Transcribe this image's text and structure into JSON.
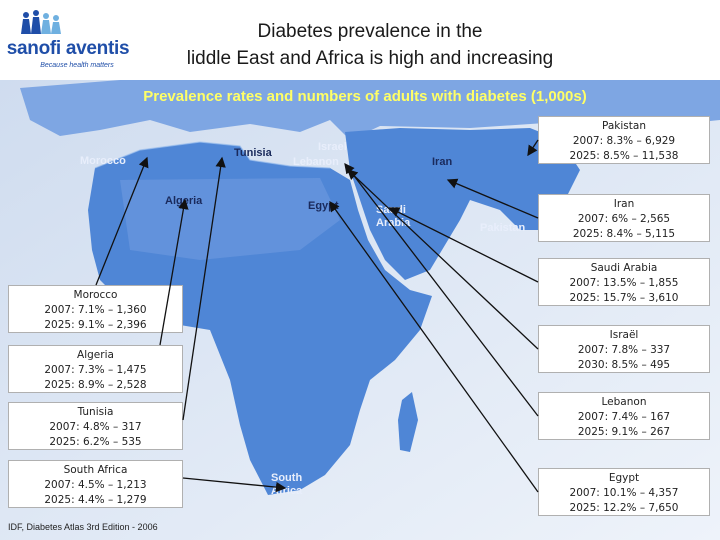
{
  "header": {
    "logo_text": "sanofi aventis",
    "logo_tagline": "Because health matters",
    "title_line1": "Diabetes prevalence in the",
    "title_line2": "liddle East and Africa is high and increasing",
    "subtitle": "Prevalence rates and numbers of adults with diabetes (1,000s)"
  },
  "map_labels": {
    "morocco": "Morocco",
    "tunisia": "Tunisia",
    "israel": "Israel",
    "lebanon": "Lebanon",
    "iran": "Iran",
    "algeria": "Algeria",
    "egypt": "Egypt",
    "saudi_line1": "Saudi",
    "saudi_line2": "Arabia",
    "pakistan": "Pakistan",
    "south_line1": "South",
    "south_line2": "Africa"
  },
  "callouts": {
    "pakistan": {
      "name": "Pakistan",
      "line2007": "2007: 8.3% – 6,929",
      "line2025": "2025: 8.5% – 11,538"
    },
    "iran": {
      "name": "Iran",
      "line2007": "2007: 6% – 2,565",
      "line2025": "2025: 8.4% – 5,115"
    },
    "saudi": {
      "name": "Saudi Arabia",
      "line2007": "2007: 13.5% – 1,855",
      "line2025": "2025: 15.7% – 3,610"
    },
    "israel": {
      "name": "Israël",
      "line2007": "2007: 7.8% – 337",
      "line2025": "2030: 8.5% – 495"
    },
    "lebanon": {
      "name": "Lebanon",
      "line2007": "2007: 7.4% – 167",
      "line2025": "2025: 9.1% – 267"
    },
    "egypt": {
      "name": "Egypt",
      "line2007": "2007: 10.1% – 4,357",
      "line2025": "2025: 12.2% – 7,650"
    },
    "morocco": {
      "name": "Morocco",
      "line2007": "2007: 7.1% – 1,360",
      "line2025": "2025: 9.1% – 2,396"
    },
    "algeria": {
      "name": "Algeria",
      "line2007": "2007: 7.3% – 1,475",
      "line2025": "2025: 8.9% – 2,528"
    },
    "tunisia": {
      "name": "Tunisia",
      "line2007": "2007: 4.8% – 317",
      "line2025": "2025: 6.2% – 535"
    },
    "south_africa": {
      "name": "South Africa",
      "line2007": "2007: 4.5% – 1,213",
      "line2025": "2025: 4.4% – 1,279"
    }
  },
  "source": "IDF, Diabetes Atlas 3rd Edition - 2006",
  "colors": {
    "sea": "#dfe8f4",
    "land": "#4f86d6",
    "land_dark": "#2f5fb5",
    "highlight_text": "#ffff66"
  }
}
